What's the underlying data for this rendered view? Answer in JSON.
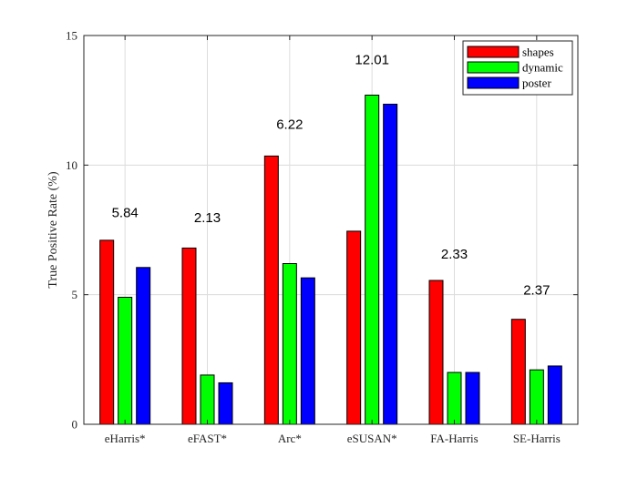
{
  "chart_data": {
    "type": "bar",
    "title": "",
    "xlabel": "",
    "ylabel": "True Positive Rate (%)",
    "ylim": [
      0,
      15
    ],
    "yticks": [
      0,
      5,
      10,
      15
    ],
    "grid": true,
    "legend_position": "top-right",
    "categories": [
      "eHarris*",
      "eFAST*",
      "Arc*",
      "eSUSAN*",
      "FA-Harris",
      "SE-Harris"
    ],
    "series": [
      {
        "name": "shapes",
        "color": "#ff0000",
        "values": [
          7.1,
          6.8,
          10.35,
          7.45,
          5.55,
          4.05
        ]
      },
      {
        "name": "dynamic",
        "color": "#00ff00",
        "values": [
          4.9,
          1.9,
          6.2,
          12.7,
          2.0,
          2.1
        ]
      },
      {
        "name": "poster",
        "color": "#0000ff",
        "values": [
          6.05,
          1.6,
          5.65,
          12.35,
          2.0,
          2.25
        ]
      }
    ],
    "annotations": [
      {
        "category": "eHarris*",
        "text": "5.84",
        "y": 8.0
      },
      {
        "category": "eFAST*",
        "text": "2.13",
        "y": 7.8
      },
      {
        "category": "Arc*",
        "text": "6.22",
        "y": 11.4
      },
      {
        "category": "eSUSAN*",
        "text": "12.01",
        "y": 13.9
      },
      {
        "category": "FA-Harris",
        "text": "2.33",
        "y": 6.4
      },
      {
        "category": "SE-Harris",
        "text": "2.37",
        "y": 5.0
      }
    ]
  }
}
